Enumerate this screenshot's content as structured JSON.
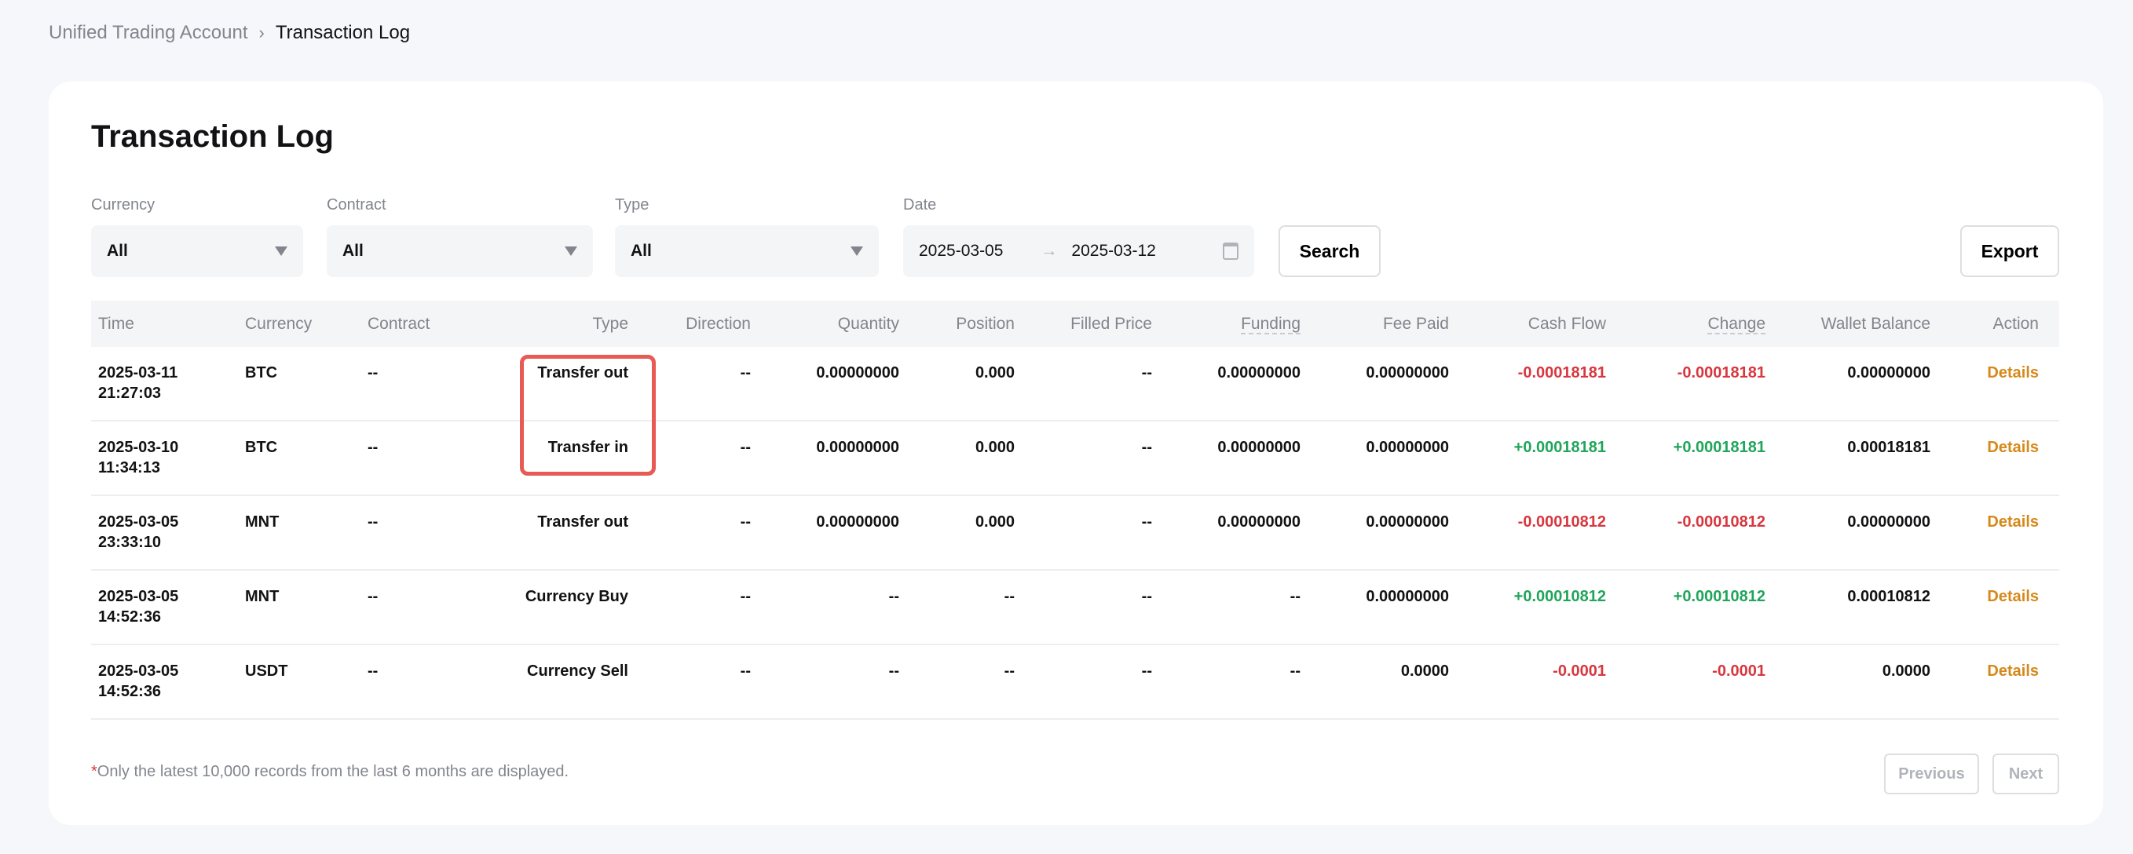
{
  "breadcrumb": {
    "parent": "Unified Trading Account",
    "current": "Transaction Log"
  },
  "page_title": "Transaction Log",
  "filters": {
    "currency": {
      "label": "Currency",
      "value": "All"
    },
    "contract": {
      "label": "Contract",
      "value": "All"
    },
    "type": {
      "label": "Type",
      "value": "All"
    },
    "date": {
      "label": "Date",
      "start": "2025-03-05",
      "end": "2025-03-12",
      "separator": "→"
    }
  },
  "buttons": {
    "search": "Search",
    "export": "Export",
    "previous": "Previous",
    "next": "Next"
  },
  "table": {
    "columns": [
      "Time",
      "Currency",
      "Contract",
      "Type",
      "Direction",
      "Quantity",
      "Position",
      "Filled Price",
      "Funding",
      "Fee Paid",
      "Cash Flow",
      "Change",
      "Wallet Balance",
      "Action"
    ],
    "rows": [
      {
        "date": "2025-03-11",
        "time": "21:27:03",
        "currency": "BTC",
        "contract": "--",
        "type": "Transfer out",
        "direction": "--",
        "quantity": "0.00000000",
        "position": "0.000",
        "filled_price": "--",
        "funding": "0.00000000",
        "fee_paid": "0.00000000",
        "cash_flow": "-0.00018181",
        "change": "-0.00018181",
        "wallet_balance": "0.00000000",
        "action": "Details",
        "sign": "neg"
      },
      {
        "date": "2025-03-10",
        "time": "11:34:13",
        "currency": "BTC",
        "contract": "--",
        "type": "Transfer in",
        "direction": "--",
        "quantity": "0.00000000",
        "position": "0.000",
        "filled_price": "--",
        "funding": "0.00000000",
        "fee_paid": "0.00000000",
        "cash_flow": "+0.00018181",
        "change": "+0.00018181",
        "wallet_balance": "0.00018181",
        "action": "Details",
        "sign": "pos"
      },
      {
        "date": "2025-03-05",
        "time": "23:33:10",
        "currency": "MNT",
        "contract": "--",
        "type": "Transfer out",
        "direction": "--",
        "quantity": "0.00000000",
        "position": "0.000",
        "filled_price": "--",
        "funding": "0.00000000",
        "fee_paid": "0.00000000",
        "cash_flow": "-0.00010812",
        "change": "-0.00010812",
        "wallet_balance": "0.00000000",
        "action": "Details",
        "sign": "neg"
      },
      {
        "date": "2025-03-05",
        "time": "14:52:36",
        "currency": "MNT",
        "contract": "--",
        "type": "Currency Buy",
        "direction": "--",
        "quantity": "--",
        "position": "--",
        "filled_price": "--",
        "funding": "--",
        "fee_paid": "0.00000000",
        "cash_flow": "+0.00010812",
        "change": "+0.00010812",
        "wallet_balance": "0.00010812",
        "action": "Details",
        "sign": "pos"
      },
      {
        "date": "2025-03-05",
        "time": "14:52:36",
        "currency": "USDT",
        "contract": "--",
        "type": "Currency Sell",
        "direction": "--",
        "quantity": "--",
        "position": "--",
        "filled_price": "--",
        "funding": "--",
        "fee_paid": "0.0000",
        "cash_flow": "-0.0001",
        "change": "-0.0001",
        "wallet_balance": "0.0000",
        "action": "Details",
        "sign": "neg"
      }
    ]
  },
  "footnote": {
    "asterisk": "*",
    "text": "Only the latest 10,000 records from the last 6 months are displayed."
  },
  "colors": {
    "negative": "#d8373f",
    "positive": "#20a55a",
    "action": "#d6891a",
    "highlight": "#e85a54"
  }
}
